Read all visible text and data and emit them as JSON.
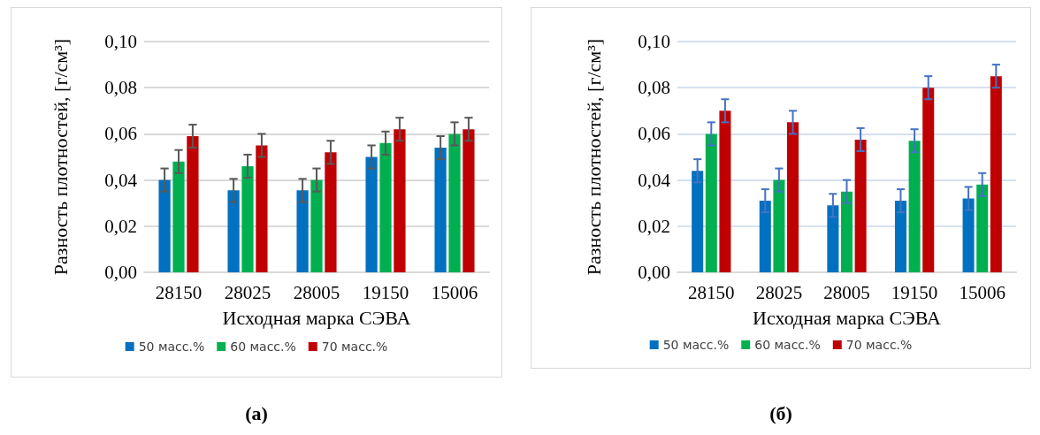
{
  "chart_data": [
    {
      "type": "bar",
      "xlabel": "Исходная марка СЭВА",
      "ylabel": "Разность плотностей, [г/см³]",
      "categories": [
        "28150",
        "28025",
        "28005",
        "19150",
        "15006"
      ],
      "series": [
        {
          "name": "50 масс.%",
          "color": "#0070c0",
          "values": [
            0.04,
            0.0355,
            0.0355,
            0.05,
            0.054
          ],
          "errors": [
            0.005,
            0.005,
            0.005,
            0.005,
            0.005
          ]
        },
        {
          "name": "60 масс.%",
          "color": "#00b050",
          "values": [
            0.048,
            0.046,
            0.04,
            0.056,
            0.06
          ],
          "errors": [
            0.005,
            0.005,
            0.005,
            0.005,
            0.005
          ]
        },
        {
          "name": "70 масс.%",
          "color": "#c00000",
          "values": [
            0.059,
            0.055,
            0.052,
            0.062,
            0.062
          ],
          "errors": [
            0.005,
            0.005,
            0.005,
            0.005,
            0.005
          ]
        }
      ],
      "ylim": [
        0,
        0.1
      ],
      "yticks": [
        {
          "value": 0,
          "label": "0,00"
        },
        {
          "value": 0.02,
          "label": "0,02"
        },
        {
          "value": 0.04,
          "label": "0,04"
        },
        {
          "value": 0.06,
          "label": "0,06"
        },
        {
          "value": 0.08,
          "label": "0,08"
        },
        {
          "value": 0.1,
          "label": "0,10"
        }
      ],
      "grid": "y",
      "legend": "bottom",
      "annotations": [
        "(а)"
      ]
    },
    {
      "type": "bar",
      "xlabel": "Исходная марка СЭВА",
      "ylabel": "Разность плотностей, [г/см³]",
      "categories": [
        "28150",
        "28025",
        "28005",
        "19150",
        "15006"
      ],
      "series": [
        {
          "name": "50 масс.%",
          "color": "#0070c0",
          "values": [
            0.044,
            0.031,
            0.029,
            0.031,
            0.032
          ],
          "errors": [
            0.005,
            0.005,
            0.005,
            0.005,
            0.005
          ]
        },
        {
          "name": "60 масс.%",
          "color": "#00b050",
          "values": [
            0.06,
            0.04,
            0.035,
            0.057,
            0.038
          ],
          "errors": [
            0.005,
            0.005,
            0.005,
            0.005,
            0.005
          ]
        },
        {
          "name": "70 масс.%",
          "color": "#c00000",
          "values": [
            0.07,
            0.065,
            0.0575,
            0.08,
            0.085
          ],
          "errors": [
            0.005,
            0.005,
            0.005,
            0.005,
            0.005
          ]
        }
      ],
      "ylim": [
        0,
        0.1
      ],
      "yticks": [
        {
          "value": 0,
          "label": "0,00"
        },
        {
          "value": 0.02,
          "label": "0,02"
        },
        {
          "value": 0.04,
          "label": "0,04"
        },
        {
          "value": 0.06,
          "label": "0,06"
        },
        {
          "value": 0.08,
          "label": "0,08"
        },
        {
          "value": 0.1,
          "label": "0,10"
        }
      ],
      "grid": "y",
      "legend": "bottom",
      "annotations": [
        "(б)"
      ]
    }
  ]
}
